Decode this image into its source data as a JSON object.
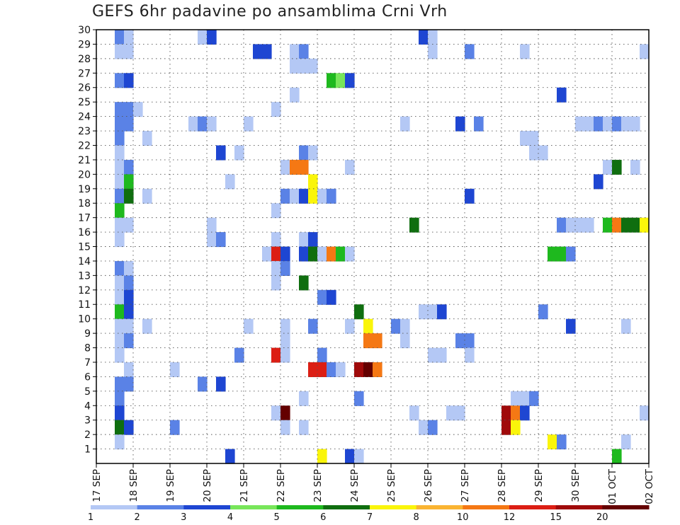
{
  "chart_data": {
    "type": "heatmap",
    "title": "GEFS 6hr padavine po ansamblima Crni Vrh",
    "xlabel": "",
    "ylabel": "",
    "x_tick_labels": [
      "17 SEP",
      "18 SEP",
      "19 SEP",
      "20 SEP",
      "21 SEP",
      "22 SEP",
      "23 SEP",
      "24 SEP",
      "25 SEP",
      "26 SEP",
      "27 SEP",
      "28 SEP",
      "29 SEP",
      "30 SEP",
      "01 OCT",
      "02 OCT"
    ],
    "x_range": [
      0,
      60
    ],
    "x_units": "6-hour steps from 17 SEP 00Z",
    "y_tick_labels": [
      "1",
      "2",
      "3",
      "4",
      "5",
      "6",
      "7",
      "8",
      "9",
      "10",
      "11",
      "12",
      "13",
      "14",
      "15",
      "16",
      "17",
      "18",
      "19",
      "20",
      "21",
      "22",
      "23",
      "24",
      "25",
      "26",
      "27",
      "28",
      "29",
      "30"
    ],
    "y_range": [
      0,
      30
    ],
    "legend": {
      "placement": "bottom",
      "labels": [
        "1",
        "2",
        "3",
        "4",
        "5",
        "6",
        "7",
        "8",
        "10",
        "12",
        "15",
        "20"
      ],
      "colors": [
        "#b4c8f5",
        "#5a82e6",
        "#1e46d2",
        "#78e65a",
        "#1eb91e",
        "#0f6e0f",
        "#faf50a",
        "#fab432",
        "#f57814",
        "#dc1e14",
        "#a00a0a",
        "#640000"
      ]
    },
    "cells": [
      [
        2,
        30,
        1
      ],
      [
        3,
        30,
        0
      ],
      [
        11,
        30,
        0
      ],
      [
        12,
        30,
        2
      ],
      [
        12,
        30,
        2
      ],
      [
        35,
        30,
        2
      ],
      [
        36,
        30,
        0
      ],
      [
        2,
        29,
        0
      ],
      [
        3,
        29,
        0
      ],
      [
        17,
        29,
        2
      ],
      [
        18,
        29,
        2
      ],
      [
        21,
        29,
        0
      ],
      [
        22,
        29,
        1
      ],
      [
        36,
        29,
        0
      ],
      [
        40,
        29,
        1
      ],
      [
        46,
        29,
        0
      ],
      [
        59,
        29,
        0
      ],
      [
        21,
        28,
        0
      ],
      [
        22,
        28,
        0
      ],
      [
        23,
        28,
        0
      ],
      [
        2,
        27,
        1
      ],
      [
        3,
        27,
        2
      ],
      [
        25,
        27,
        4
      ],
      [
        26,
        27,
        3
      ],
      [
        27,
        27,
        2
      ],
      [
        21,
        26,
        0
      ],
      [
        50,
        26,
        2
      ],
      [
        2,
        25,
        1
      ],
      [
        3,
        25,
        1
      ],
      [
        4,
        25,
        0
      ],
      [
        19,
        25,
        0
      ],
      [
        2,
        24,
        1
      ],
      [
        3,
        24,
        1
      ],
      [
        10,
        24,
        0
      ],
      [
        11,
        24,
        1
      ],
      [
        12,
        24,
        0
      ],
      [
        16,
        24,
        0
      ],
      [
        33,
        24,
        0
      ],
      [
        39,
        24,
        2
      ],
      [
        41,
        24,
        1
      ],
      [
        52,
        24,
        0
      ],
      [
        53,
        24,
        0
      ],
      [
        54,
        24,
        1
      ],
      [
        55,
        24,
        0
      ],
      [
        56,
        24,
        1
      ],
      [
        57,
        24,
        0
      ],
      [
        58,
        24,
        0
      ],
      [
        2,
        23,
        1
      ],
      [
        5,
        23,
        0
      ],
      [
        46,
        23,
        0
      ],
      [
        47,
        23,
        0
      ],
      [
        2,
        22,
        0
      ],
      [
        13,
        22,
        2
      ],
      [
        15,
        22,
        0
      ],
      [
        22,
        22,
        1
      ],
      [
        23,
        22,
        0
      ],
      [
        47,
        22,
        0
      ],
      [
        48,
        22,
        0
      ],
      [
        2,
        21,
        0
      ],
      [
        3,
        21,
        1
      ],
      [
        20,
        21,
        0
      ],
      [
        21,
        21,
        8
      ],
      [
        22,
        21,
        8
      ],
      [
        27,
        21,
        0
      ],
      [
        55,
        21,
        0
      ],
      [
        56,
        21,
        5
      ],
      [
        58,
        21,
        0
      ],
      [
        2,
        20,
        0
      ],
      [
        3,
        20,
        4
      ],
      [
        14,
        20,
        0
      ],
      [
        23,
        20,
        6
      ],
      [
        54,
        20,
        2
      ],
      [
        2,
        19,
        1
      ],
      [
        3,
        19,
        5
      ],
      [
        5,
        19,
        0
      ],
      [
        20,
        19,
        1
      ],
      [
        21,
        19,
        0
      ],
      [
        22,
        19,
        2
      ],
      [
        23,
        19,
        6
      ],
      [
        24,
        19,
        0
      ],
      [
        25,
        19,
        1
      ],
      [
        40,
        19,
        2
      ],
      [
        2,
        18,
        4
      ],
      [
        19,
        18,
        0
      ],
      [
        2,
        17,
        0
      ],
      [
        3,
        17,
        0
      ],
      [
        12,
        17,
        0
      ],
      [
        34,
        17,
        5
      ],
      [
        50,
        17,
        1
      ],
      [
        51,
        17,
        0
      ],
      [
        52,
        17,
        0
      ],
      [
        53,
        17,
        0
      ],
      [
        55,
        17,
        4
      ],
      [
        56,
        17,
        8
      ],
      [
        57,
        17,
        5
      ],
      [
        58,
        17,
        5
      ],
      [
        59,
        17,
        6
      ],
      [
        2,
        16,
        0
      ],
      [
        12,
        16,
        0
      ],
      [
        13,
        16,
        1
      ],
      [
        19,
        16,
        0
      ],
      [
        22,
        16,
        0
      ],
      [
        23,
        16,
        2
      ],
      [
        18,
        15,
        0
      ],
      [
        19,
        15,
        9
      ],
      [
        20,
        15,
        2
      ],
      [
        22,
        15,
        2
      ],
      [
        23,
        15,
        5
      ],
      [
        24,
        15,
        0
      ],
      [
        25,
        15,
        8
      ],
      [
        26,
        15,
        4
      ],
      [
        27,
        15,
        0
      ],
      [
        49,
        15,
        4
      ],
      [
        50,
        15,
        4
      ],
      [
        51,
        15,
        1
      ],
      [
        2,
        14,
        1
      ],
      [
        3,
        14,
        0
      ],
      [
        19,
        14,
        0
      ],
      [
        20,
        14,
        1
      ],
      [
        2,
        13,
        0
      ],
      [
        3,
        13,
        1
      ],
      [
        19,
        13,
        0
      ],
      [
        22,
        13,
        5
      ],
      [
        2,
        12,
        0
      ],
      [
        3,
        12,
        2
      ],
      [
        24,
        12,
        1
      ],
      [
        25,
        12,
        2
      ],
      [
        2,
        11,
        4
      ],
      [
        3,
        11,
        2
      ],
      [
        28,
        11,
        5
      ],
      [
        35,
        11,
        0
      ],
      [
        36,
        11,
        0
      ],
      [
        37,
        11,
        2
      ],
      [
        48,
        11,
        1
      ],
      [
        2,
        10,
        0
      ],
      [
        3,
        10,
        0
      ],
      [
        5,
        10,
        0
      ],
      [
        16,
        10,
        0
      ],
      [
        20,
        10,
        0
      ],
      [
        23,
        10,
        1
      ],
      [
        27,
        10,
        0
      ],
      [
        29,
        10,
        6
      ],
      [
        32,
        10,
        1
      ],
      [
        33,
        10,
        0
      ],
      [
        51,
        10,
        2
      ],
      [
        57,
        10,
        0
      ],
      [
        2,
        9,
        0
      ],
      [
        3,
        9,
        1
      ],
      [
        20,
        9,
        0
      ],
      [
        29,
        9,
        8
      ],
      [
        30,
        9,
        8
      ],
      [
        33,
        9,
        0
      ],
      [
        39,
        9,
        1
      ],
      [
        40,
        9,
        1
      ],
      [
        2,
        8,
        0
      ],
      [
        15,
        8,
        1
      ],
      [
        19,
        8,
        9
      ],
      [
        20,
        8,
        0
      ],
      [
        24,
        8,
        1
      ],
      [
        36,
        8,
        0
      ],
      [
        37,
        8,
        0
      ],
      [
        40,
        8,
        0
      ],
      [
        3,
        7,
        0
      ],
      [
        8,
        7,
        0
      ],
      [
        23,
        7,
        9
      ],
      [
        24,
        7,
        9
      ],
      [
        25,
        7,
        1
      ],
      [
        26,
        7,
        0
      ],
      [
        28,
        7,
        10
      ],
      [
        29,
        7,
        11
      ],
      [
        30,
        7,
        8
      ],
      [
        2,
        6,
        1
      ],
      [
        3,
        6,
        1
      ],
      [
        11,
        6,
        1
      ],
      [
        13,
        6,
        2
      ],
      [
        2,
        5,
        1
      ],
      [
        22,
        5,
        0
      ],
      [
        28,
        5,
        1
      ],
      [
        45,
        5,
        0
      ],
      [
        46,
        5,
        0
      ],
      [
        47,
        5,
        1
      ],
      [
        2,
        4,
        2
      ],
      [
        19,
        4,
        0
      ],
      [
        20,
        4,
        11
      ],
      [
        34,
        4,
        0
      ],
      [
        38,
        4,
        0
      ],
      [
        39,
        4,
        0
      ],
      [
        44,
        4,
        10
      ],
      [
        45,
        4,
        8
      ],
      [
        46,
        4,
        2
      ],
      [
        59,
        4,
        0
      ],
      [
        2,
        3,
        5
      ],
      [
        3,
        3,
        2
      ],
      [
        8,
        3,
        1
      ],
      [
        20,
        3,
        0
      ],
      [
        22,
        3,
        0
      ],
      [
        35,
        3,
        0
      ],
      [
        36,
        3,
        1
      ],
      [
        44,
        3,
        10
      ],
      [
        45,
        3,
        6
      ],
      [
        2,
        2,
        0
      ],
      [
        49,
        2,
        6
      ],
      [
        50,
        2,
        1
      ],
      [
        57,
        2,
        0
      ],
      [
        14,
        1,
        2
      ],
      [
        24,
        1,
        6
      ],
      [
        27,
        1,
        2
      ],
      [
        28,
        1,
        0
      ],
      [
        56,
        1,
        4
      ]
    ]
  }
}
